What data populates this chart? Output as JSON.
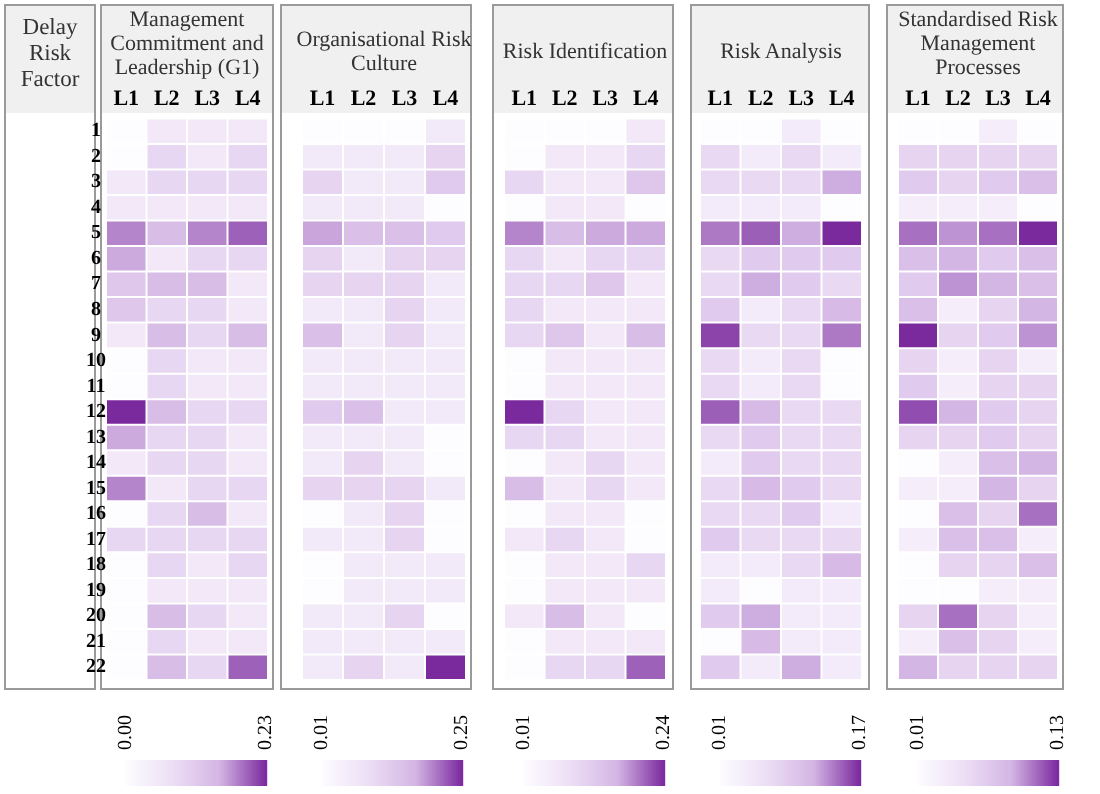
{
  "chart_data": [
    {
      "type": "heatmap",
      "title": "Management Commitment and Leadership (G1)",
      "ylabel": "Delay Risk Factor",
      "categories": [
        "L1",
        "L2",
        "L3",
        "L4"
      ],
      "y_categories": [
        "1",
        "2",
        "3",
        "4",
        "5",
        "6",
        "7",
        "8",
        "9",
        "10",
        "11",
        "12",
        "13",
        "14",
        "15",
        "16",
        "17",
        "18",
        "19",
        "20",
        "21",
        "22"
      ],
      "cells": [
        [
          0,
          0.05,
          0.05,
          0.05
        ],
        [
          0,
          0.09,
          0.05,
          0.09
        ],
        [
          0.05,
          0.09,
          0.09,
          0.09
        ],
        [
          0.05,
          0.05,
          0.05,
          0.05
        ],
        [
          0.18,
          0.14,
          0.18,
          0.2
        ],
        [
          0.16,
          0.05,
          0.09,
          0.09
        ],
        [
          0.12,
          0.14,
          0.14,
          0.05
        ],
        [
          0.12,
          0.09,
          0.09,
          0.05
        ],
        [
          0.05,
          0.14,
          0.09,
          0.14
        ],
        [
          0,
          0.09,
          0.05,
          0.05
        ],
        [
          0,
          0.09,
          0.05,
          0.05
        ],
        [
          0.23,
          0.14,
          0.09,
          0.09
        ],
        [
          0.16,
          0.09,
          0.09,
          0.05
        ],
        [
          0.05,
          0.09,
          0.09,
          0.05
        ],
        [
          0.18,
          0.05,
          0.09,
          0.09
        ],
        [
          0,
          0.09,
          0.14,
          0.05
        ],
        [
          0.09,
          0.09,
          0.09,
          0.09
        ],
        [
          0,
          0.09,
          0.05,
          0.09
        ],
        [
          0,
          0.05,
          0.05,
          0.05
        ],
        [
          0,
          0.14,
          0.09,
          0.05
        ],
        [
          0,
          0.09,
          0.05,
          0.05
        ],
        [
          0,
          0.14,
          0.09,
          0.2
        ]
      ],
      "clim": [
        0,
        0.23
      ],
      "cticks": [
        {
          "value": 0,
          "label": "0.00"
        },
        0.23
      ]
    },
    {
      "type": "heatmap",
      "title": "Organisational Risk Culture",
      "categories": [
        "L1",
        "L2",
        "L3",
        "L4"
      ],
      "y_categories": [
        "1",
        "2",
        "3",
        "4",
        "5",
        "6",
        "7",
        "8",
        "9",
        "10",
        "11",
        "12",
        "13",
        "14",
        "15",
        "16",
        "17",
        "18",
        "19",
        "20",
        "21",
        "22"
      ],
      "tick_labels": "x",
      "cells": [
        [
          0.01,
          0.01,
          0.01,
          0.06
        ],
        [
          0.06,
          0.06,
          0.06,
          0.11
        ],
        [
          0.11,
          0.06,
          0.06,
          0.13
        ],
        [
          0.06,
          0.06,
          0.06,
          0.01
        ],
        [
          0.18,
          0.15,
          0.15,
          0.13
        ],
        [
          0.11,
          0.06,
          0.11,
          0.11
        ],
        [
          0.11,
          0.11,
          0.11,
          0.06
        ],
        [
          0.06,
          0.06,
          0.11,
          0.06
        ],
        [
          0.15,
          0.06,
          0.11,
          0.06
        ],
        [
          0.06,
          0.06,
          0.06,
          0.06
        ],
        [
          0.06,
          0.06,
          0.06,
          0.06
        ],
        [
          0.13,
          0.15,
          0.06,
          0.06
        ],
        [
          0.06,
          0.06,
          0.06,
          0.01
        ],
        [
          0.06,
          0.11,
          0.06,
          0.01
        ],
        [
          0.11,
          0.11,
          0.11,
          0.06
        ],
        [
          0.01,
          0.06,
          0.11,
          0.01
        ],
        [
          0.06,
          0.06,
          0.11,
          0.01
        ],
        [
          0.01,
          0.06,
          0.06,
          0.06
        ],
        [
          0.01,
          0.06,
          0.06,
          0.06
        ],
        [
          0.06,
          0.06,
          0.11,
          0.01
        ],
        [
          0.06,
          0.06,
          0.06,
          0.06
        ],
        [
          0.06,
          0.11,
          0.06,
          0.25
        ]
      ],
      "clim": [
        0.01,
        0.25
      ],
      "cticks": [
        0.01,
        0.25
      ]
    },
    {
      "type": "heatmap",
      "title": "Risk Identification",
      "categories": [
        "L1",
        "L2",
        "L3",
        "L4"
      ],
      "y_categories": [
        "1",
        "2",
        "3",
        "4",
        "5",
        "6",
        "7",
        "8",
        "9",
        "10",
        "11",
        "12",
        "13",
        "14",
        "15",
        "16",
        "17",
        "18",
        "19",
        "20",
        "21",
        "22"
      ],
      "tick_labels": "x",
      "cells": [
        [
          0.01,
          0.01,
          0.01,
          0.06
        ],
        [
          0.01,
          0.06,
          0.06,
          0.1
        ],
        [
          0.1,
          0.06,
          0.06,
          0.13
        ],
        [
          0.01,
          0.06,
          0.06,
          0.01
        ],
        [
          0.19,
          0.15,
          0.17,
          0.17
        ],
        [
          0.1,
          0.06,
          0.1,
          0.1
        ],
        [
          0.1,
          0.1,
          0.13,
          0.06
        ],
        [
          0.1,
          0.06,
          0.06,
          0.06
        ],
        [
          0.1,
          0.13,
          0.06,
          0.15
        ],
        [
          0.01,
          0.06,
          0.06,
          0.06
        ],
        [
          0.01,
          0.06,
          0.06,
          0.06
        ],
        [
          0.24,
          0.1,
          0.06,
          0.06
        ],
        [
          0.1,
          0.1,
          0.06,
          0.06
        ],
        [
          0.01,
          0.06,
          0.1,
          0.06
        ],
        [
          0.15,
          0.06,
          0.1,
          0.06
        ],
        [
          0.01,
          0.06,
          0.06,
          0.01
        ],
        [
          0.06,
          0.1,
          0.06,
          0.01
        ],
        [
          0.01,
          0.06,
          0.06,
          0.1
        ],
        [
          0.01,
          0.06,
          0.06,
          0.06
        ],
        [
          0.06,
          0.15,
          0.06,
          0.01
        ],
        [
          0.01,
          0.06,
          0.06,
          0.06
        ],
        [
          0.01,
          0.1,
          0.1,
          0.21
        ]
      ],
      "clim": [
        0.01,
        0.24
      ],
      "cticks": [
        0.01,
        0.24
      ]
    },
    {
      "type": "heatmap",
      "title": "Risk Analysis",
      "categories": [
        "L1",
        "L2",
        "L3",
        "L4"
      ],
      "y_categories": [
        "1",
        "2",
        "3",
        "4",
        "5",
        "6",
        "7",
        "8",
        "9",
        "10",
        "11",
        "12",
        "13",
        "14",
        "15",
        "16",
        "17",
        "18",
        "19",
        "20",
        "21",
        "22"
      ],
      "tick_labels": "x",
      "cells": [
        [
          0.01,
          0.01,
          0.04,
          0.01
        ],
        [
          0.07,
          0.04,
          0.07,
          0.04
        ],
        [
          0.07,
          0.07,
          0.07,
          0.12
        ],
        [
          0.04,
          0.04,
          0.04,
          0.01
        ],
        [
          0.14,
          0.15,
          0.12,
          0.17
        ],
        [
          0.07,
          0.09,
          0.09,
          0.09
        ],
        [
          0.07,
          0.12,
          0.09,
          0.07
        ],
        [
          0.09,
          0.04,
          0.07,
          0.11
        ],
        [
          0.16,
          0.07,
          0.07,
          0.14
        ],
        [
          0.07,
          0.04,
          0.07,
          0.01
        ],
        [
          0.07,
          0.04,
          0.07,
          0.01
        ],
        [
          0.15,
          0.11,
          0.07,
          0.07
        ],
        [
          0.07,
          0.09,
          0.07,
          0.07
        ],
        [
          0.04,
          0.09,
          0.07,
          0.07
        ],
        [
          0.07,
          0.11,
          0.09,
          0.07
        ],
        [
          0.07,
          0.07,
          0.09,
          0.04
        ],
        [
          0.09,
          0.07,
          0.07,
          0.07
        ],
        [
          0.04,
          0.04,
          0.07,
          0.11
        ],
        [
          0.04,
          0.01,
          0.04,
          0.04
        ],
        [
          0.09,
          0.12,
          0.04,
          0.04
        ],
        [
          0.01,
          0.11,
          0.04,
          0.04
        ],
        [
          0.09,
          0.04,
          0.12,
          0.04
        ]
      ],
      "clim": [
        0.01,
        0.17
      ],
      "cticks": [
        0.01,
        0.17
      ]
    },
    {
      "type": "heatmap",
      "title": "Standardised Risk Management Processes",
      "categories": [
        "L1",
        "L2",
        "L3",
        "L4"
      ],
      "y_categories": [
        "1",
        "2",
        "3",
        "4",
        "5",
        "6",
        "7",
        "8",
        "9",
        "10",
        "11",
        "12",
        "13",
        "14",
        "15",
        "16",
        "17",
        "18",
        "19",
        "20",
        "21",
        "22"
      ],
      "tick_labels": "x",
      "cells": [
        [
          0.01,
          0.01,
          0.03,
          0.01
        ],
        [
          0.06,
          0.06,
          0.06,
          0.06
        ],
        [
          0.07,
          0.06,
          0.07,
          0.08
        ],
        [
          0.03,
          0.03,
          0.03,
          0.01
        ],
        [
          0.11,
          0.1,
          0.11,
          0.13
        ],
        [
          0.08,
          0.09,
          0.07,
          0.08
        ],
        [
          0.07,
          0.1,
          0.09,
          0.08
        ],
        [
          0.08,
          0.03,
          0.06,
          0.09
        ],
        [
          0.13,
          0.06,
          0.07,
          0.1
        ],
        [
          0.06,
          0.03,
          0.06,
          0.03
        ],
        [
          0.07,
          0.03,
          0.06,
          0.06
        ],
        [
          0.12,
          0.09,
          0.07,
          0.06
        ],
        [
          0.06,
          0.06,
          0.07,
          0.06
        ],
        [
          0.01,
          0.03,
          0.08,
          0.09
        ],
        [
          0.03,
          0.03,
          0.09,
          0.06
        ],
        [
          0.01,
          0.08,
          0.06,
          0.11
        ],
        [
          0.03,
          0.08,
          0.08,
          0.03
        ],
        [
          0.01,
          0.06,
          0.06,
          0.08
        ],
        [
          0.01,
          0.01,
          0.03,
          0.03
        ],
        [
          0.06,
          0.11,
          0.06,
          0.03
        ],
        [
          0.03,
          0.08,
          0.06,
          0.03
        ],
        [
          0.09,
          0.06,
          0.06,
          0.06
        ]
      ],
      "clim": [
        0.01,
        0.13
      ],
      "cticks": [
        0.01,
        0.13
      ]
    }
  ]
}
